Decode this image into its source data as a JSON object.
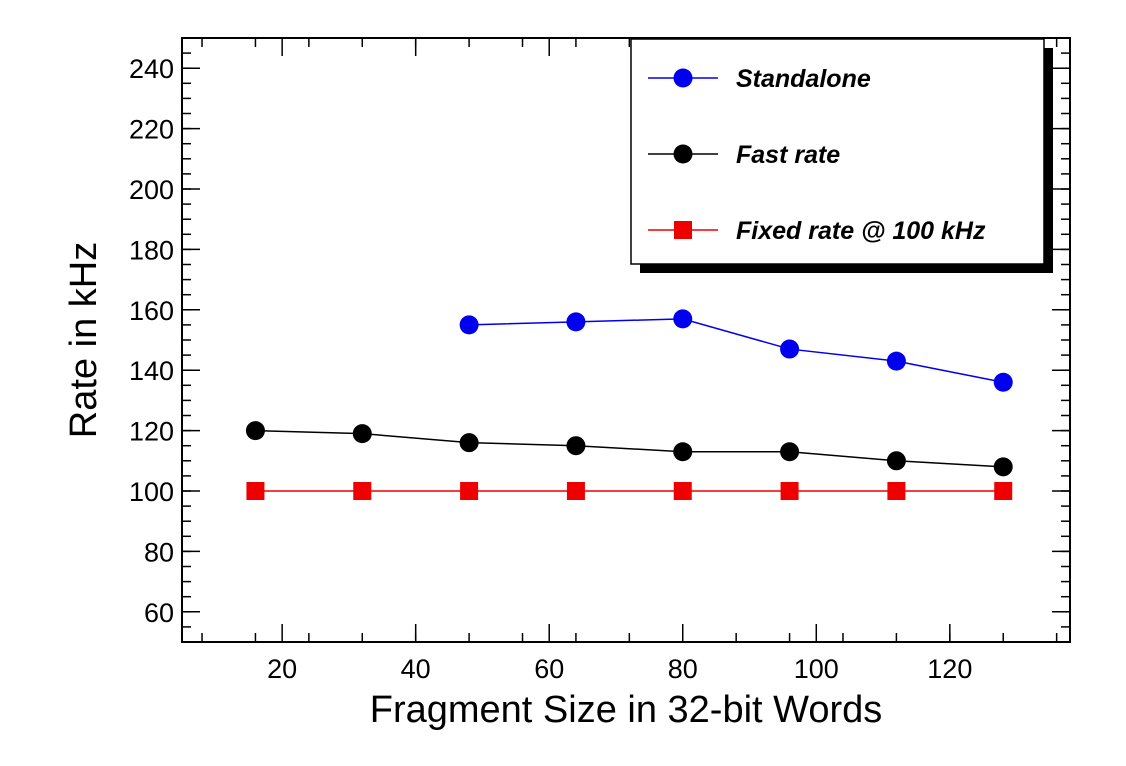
{
  "chart_data": {
    "type": "line",
    "title": "",
    "xlabel": "Fragment Size in 32-bit Words",
    "ylabel": "Rate in kHz",
    "xlim": [
      5,
      138
    ],
    "ylim": [
      50,
      250
    ],
    "x_ticks": [
      20,
      40,
      60,
      80,
      100,
      120
    ],
    "y_ticks": [
      60,
      80,
      100,
      120,
      140,
      160,
      180,
      200,
      220,
      240
    ],
    "grid": false,
    "legend_position": "top-right",
    "series": [
      {
        "name": "Standalone",
        "color": "#0000ee",
        "marker": "circle",
        "x": [
          48,
          64,
          80,
          96,
          112,
          128
        ],
        "y": [
          155,
          156,
          157,
          147,
          143,
          136
        ]
      },
      {
        "name": "Fast rate",
        "color": "#000000",
        "marker": "circle",
        "x": [
          16,
          32,
          48,
          64,
          80,
          96,
          112,
          128
        ],
        "y": [
          120,
          119,
          116,
          115,
          113,
          113,
          110,
          108
        ]
      },
      {
        "name": "Fixed rate @ 100 kHz",
        "color": "#ee0000",
        "marker": "square",
        "x": [
          16,
          32,
          48,
          64,
          80,
          96,
          112,
          128
        ],
        "y": [
          100,
          100,
          100,
          100,
          100,
          100,
          100,
          100
        ]
      }
    ]
  }
}
